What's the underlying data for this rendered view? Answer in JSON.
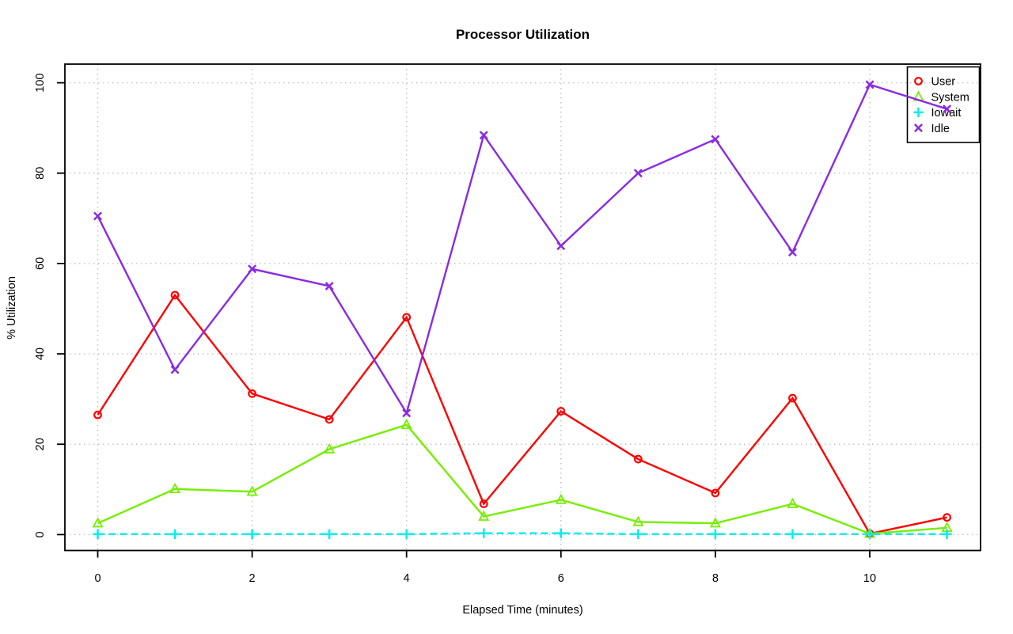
{
  "chart_data": {
    "type": "line",
    "title": "Processor Utilization",
    "xlabel": "Elapsed Time (minutes)",
    "ylabel": "% Utilization",
    "x": [
      0,
      1,
      2,
      3,
      4,
      5,
      6,
      7,
      8,
      9,
      10,
      11
    ],
    "xticks": [
      0,
      2,
      4,
      6,
      8,
      10
    ],
    "yticks": [
      0,
      20,
      40,
      60,
      80,
      100
    ],
    "xlim": [
      -0.44,
      11.44
    ],
    "ylim": [
      -4,
      104
    ],
    "grid": true,
    "grid_style": "dotted",
    "grid_color": "#c4c4c4",
    "legend_position": "top-right",
    "series": [
      {
        "name": "User",
        "color": "#FF0000",
        "marker": "circle",
        "line_style": "solid",
        "values": [
          26.5,
          53.0,
          31.2,
          25.5,
          48.1,
          6.8,
          27.3,
          16.7,
          9.2,
          30.2,
          0.2,
          3.8
        ]
      },
      {
        "name": "System",
        "color": "#76EE00",
        "marker": "triangle",
        "line_style": "solid",
        "values": [
          2.5,
          10.1,
          9.5,
          18.9,
          24.3,
          4.0,
          7.7,
          2.8,
          2.5,
          6.8,
          0.2,
          1.5
        ]
      },
      {
        "name": "Iowait",
        "color": "#00EEEE",
        "marker": "plus",
        "line_style": "dashed",
        "values": [
          0.1,
          0.1,
          0.1,
          0.1,
          0.1,
          0.3,
          0.3,
          0.1,
          0.1,
          0.1,
          0.1,
          0.1
        ]
      },
      {
        "name": "Idle",
        "color": "#8A2BE2",
        "marker": "x",
        "line_style": "solid",
        "values": [
          70.5,
          36.5,
          58.8,
          55.0,
          26.9,
          88.4,
          63.9,
          80.0,
          87.5,
          62.5,
          99.6,
          94.2
        ]
      }
    ]
  }
}
